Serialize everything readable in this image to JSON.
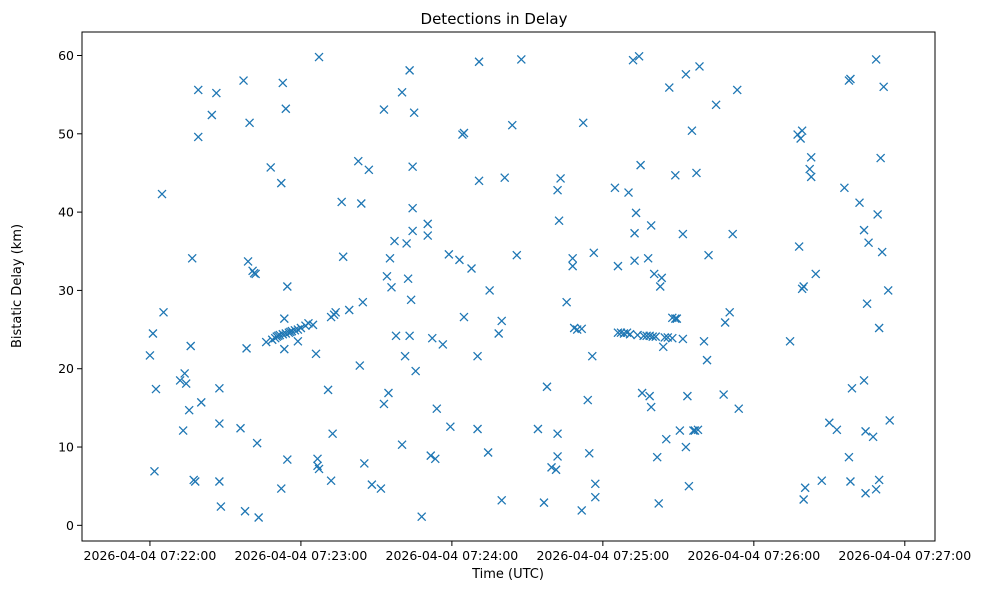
{
  "chart_data": {
    "type": "scatter",
    "title": "Detections in Delay",
    "xlabel": "Time (UTC)",
    "ylabel": "Bistatic Delay (km)",
    "x_unit": "minutes after 2026-04-04 07:22:00",
    "xlim": [
      -0.45,
      5.2
    ],
    "ylim": [
      -2,
      63
    ],
    "xticks": [
      0,
      1,
      2,
      3,
      4,
      5
    ],
    "xtick_labels": [
      "2026-04-04 07:22:00",
      "2026-04-04 07:23:00",
      "2026-04-04 07:24:00",
      "2026-04-04 07:25:00",
      "2026-04-04 07:26:00",
      "2026-04-04 07:27:00"
    ],
    "yticks": [
      0,
      10,
      20,
      30,
      40,
      50,
      60
    ],
    "ytick_labels": [
      "0",
      "10",
      "20",
      "30",
      "40",
      "50",
      "60"
    ],
    "marker": "x",
    "color": "#1f77b4",
    "series": [
      {
        "name": "detections",
        "points": [
          [
            0.03,
            6.9
          ],
          [
            0.02,
            24.5
          ],
          [
            0.04,
            17.4
          ],
          [
            0.0,
            21.7
          ],
          [
            0.08,
            42.3
          ],
          [
            0.09,
            27.2
          ],
          [
            0.2,
            18.5
          ],
          [
            0.22,
            12.1
          ],
          [
            0.23,
            19.4
          ],
          [
            0.24,
            18.1
          ],
          [
            0.26,
            14.7
          ],
          [
            0.27,
            22.9
          ],
          [
            0.28,
            34.1
          ],
          [
            0.29,
            5.8
          ],
          [
            0.3,
            5.6
          ],
          [
            0.32,
            55.6
          ],
          [
            0.32,
            49.6
          ],
          [
            0.34,
            15.7
          ],
          [
            0.41,
            52.4
          ],
          [
            0.44,
            55.2
          ],
          [
            0.46,
            17.5
          ],
          [
            0.46,
            13.0
          ],
          [
            0.46,
            5.6
          ],
          [
            0.47,
            2.4
          ],
          [
            0.6,
            12.4
          ],
          [
            0.62,
            56.8
          ],
          [
            0.63,
            1.8
          ],
          [
            0.64,
            22.6
          ],
          [
            0.65,
            33.7
          ],
          [
            0.66,
            51.4
          ],
          [
            0.68,
            32.5
          ],
          [
            0.69,
            32.2
          ],
          [
            0.7,
            32.1
          ],
          [
            0.71,
            10.5
          ],
          [
            0.72,
            1.0
          ],
          [
            0.77,
            23.4
          ],
          [
            0.8,
            45.7
          ],
          [
            0.81,
            23.7
          ],
          [
            0.83,
            23.9
          ],
          [
            0.84,
            24.1
          ],
          [
            0.85,
            24.2
          ],
          [
            0.86,
            24.3
          ],
          [
            0.87,
            43.7
          ],
          [
            0.87,
            4.7
          ],
          [
            0.88,
            56.5
          ],
          [
            0.88,
            24.4
          ],
          [
            0.89,
            22.5
          ],
          [
            0.89,
            26.4
          ],
          [
            0.9,
            53.2
          ],
          [
            0.9,
            24.5
          ],
          [
            0.91,
            30.5
          ],
          [
            0.91,
            8.4
          ],
          [
            0.92,
            24.6
          ],
          [
            0.93,
            24.7
          ],
          [
            0.94,
            24.8
          ],
          [
            0.96,
            24.9
          ],
          [
            0.98,
            25.0
          ],
          [
            0.98,
            23.5
          ],
          [
            1.0,
            25.2
          ],
          [
            1.03,
            25.5
          ],
          [
            1.05,
            25.8
          ],
          [
            1.08,
            25.6
          ],
          [
            1.1,
            21.9
          ],
          [
            1.11,
            8.5
          ],
          [
            1.11,
            7.6
          ],
          [
            1.12,
            7.2
          ],
          [
            1.12,
            59.8
          ],
          [
            1.18,
            17.3
          ],
          [
            1.2,
            26.6
          ],
          [
            1.2,
            5.7
          ],
          [
            1.21,
            11.7
          ],
          [
            1.22,
            26.9
          ],
          [
            1.23,
            27.2
          ],
          [
            1.27,
            41.3
          ],
          [
            1.28,
            34.3
          ],
          [
            1.32,
            27.5
          ],
          [
            1.38,
            46.5
          ],
          [
            1.39,
            20.4
          ],
          [
            1.4,
            41.1
          ],
          [
            1.41,
            28.5
          ],
          [
            1.42,
            7.9
          ],
          [
            1.45,
            45.4
          ],
          [
            1.47,
            5.2
          ],
          [
            1.53,
            4.7
          ],
          [
            1.55,
            53.1
          ],
          [
            1.55,
            15.5
          ],
          [
            1.57,
            31.8
          ],
          [
            1.58,
            16.9
          ],
          [
            1.59,
            34.1
          ],
          [
            1.6,
            30.4
          ],
          [
            1.62,
            36.3
          ],
          [
            1.63,
            24.2
          ],
          [
            1.67,
            55.3
          ],
          [
            1.67,
            10.3
          ],
          [
            1.69,
            21.6
          ],
          [
            1.7,
            36.0
          ],
          [
            1.71,
            31.5
          ],
          [
            1.72,
            58.1
          ],
          [
            1.72,
            24.2
          ],
          [
            1.73,
            28.8
          ],
          [
            1.74,
            45.8
          ],
          [
            1.74,
            37.6
          ],
          [
            1.74,
            40.5
          ],
          [
            1.75,
            52.7
          ],
          [
            1.76,
            19.7
          ],
          [
            1.8,
            1.1
          ],
          [
            1.84,
            37.0
          ],
          [
            1.84,
            38.5
          ],
          [
            1.86,
            8.9
          ],
          [
            1.87,
            23.9
          ],
          [
            1.89,
            8.5
          ],
          [
            1.9,
            14.9
          ],
          [
            1.94,
            23.1
          ],
          [
            1.98,
            34.6
          ],
          [
            1.99,
            12.6
          ],
          [
            2.05,
            33.9
          ],
          [
            2.07,
            49.9
          ],
          [
            2.08,
            50.1
          ],
          [
            2.08,
            26.6
          ],
          [
            2.13,
            32.8
          ],
          [
            2.17,
            21.6
          ],
          [
            2.17,
            12.3
          ],
          [
            2.18,
            44.0
          ],
          [
            2.18,
            59.2
          ],
          [
            2.24,
            9.3
          ],
          [
            2.25,
            30.0
          ],
          [
            2.31,
            24.5
          ],
          [
            2.33,
            3.2
          ],
          [
            2.33,
            26.1
          ],
          [
            2.35,
            44.4
          ],
          [
            2.4,
            51.1
          ],
          [
            2.43,
            34.5
          ],
          [
            2.46,
            59.5
          ],
          [
            2.57,
            12.3
          ],
          [
            2.61,
            2.9
          ],
          [
            2.63,
            17.7
          ],
          [
            2.66,
            7.4
          ],
          [
            2.69,
            7.1
          ],
          [
            2.7,
            11.7
          ],
          [
            2.7,
            42.8
          ],
          [
            2.7,
            8.8
          ],
          [
            2.72,
            44.3
          ],
          [
            2.71,
            38.9
          ],
          [
            2.76,
            28.5
          ],
          [
            2.8,
            34.1
          ],
          [
            2.8,
            33.1
          ],
          [
            2.81,
            25.2
          ],
          [
            2.83,
            25.0
          ],
          [
            2.86,
            25.1
          ],
          [
            2.86,
            1.9
          ],
          [
            2.87,
            51.4
          ],
          [
            2.9,
            16.0
          ],
          [
            2.91,
            9.2
          ],
          [
            2.93,
            21.6
          ],
          [
            2.94,
            34.8
          ],
          [
            2.95,
            5.3
          ],
          [
            2.95,
            3.6
          ],
          [
            3.08,
            43.1
          ],
          [
            3.1,
            33.1
          ],
          [
            3.1,
            24.6
          ],
          [
            3.12,
            24.6
          ],
          [
            3.14,
            24.5
          ],
          [
            3.16,
            24.6
          ],
          [
            3.17,
            42.5
          ],
          [
            3.18,
            24.4
          ],
          [
            3.2,
            59.4
          ],
          [
            3.21,
            33.8
          ],
          [
            3.21,
            37.3
          ],
          [
            3.22,
            39.9
          ],
          [
            3.23,
            24.3
          ],
          [
            3.24,
            59.9
          ],
          [
            3.25,
            46.0
          ],
          [
            3.26,
            16.9
          ],
          [
            3.27,
            24.2
          ],
          [
            3.29,
            24.2
          ],
          [
            3.3,
            34.1
          ],
          [
            3.31,
            24.2
          ],
          [
            3.31,
            16.5
          ],
          [
            3.32,
            15.1
          ],
          [
            3.32,
            38.3
          ],
          [
            3.33,
            24.1
          ],
          [
            3.34,
            32.1
          ],
          [
            3.35,
            24.1
          ],
          [
            3.36,
            8.7
          ],
          [
            3.37,
            2.8
          ],
          [
            3.38,
            30.5
          ],
          [
            3.39,
            31.6
          ],
          [
            3.4,
            22.8
          ],
          [
            3.41,
            24.0
          ],
          [
            3.42,
            11.0
          ],
          [
            3.43,
            24.0
          ],
          [
            3.44,
            55.9
          ],
          [
            3.46,
            23.9
          ],
          [
            3.46,
            26.5
          ],
          [
            3.48,
            44.7
          ],
          [
            3.48,
            26.4
          ],
          [
            3.49,
            26.4
          ],
          [
            3.51,
            12.1
          ],
          [
            3.53,
            37.2
          ],
          [
            3.53,
            23.8
          ],
          [
            3.55,
            10.0
          ],
          [
            3.55,
            57.6
          ],
          [
            3.56,
            16.5
          ],
          [
            3.57,
            5.0
          ],
          [
            3.59,
            50.4
          ],
          [
            3.6,
            12.1
          ],
          [
            3.61,
            12.1
          ],
          [
            3.62,
            45.0
          ],
          [
            3.63,
            12.2
          ],
          [
            3.64,
            58.6
          ],
          [
            3.67,
            23.5
          ],
          [
            3.69,
            21.1
          ],
          [
            3.7,
            34.5
          ],
          [
            3.75,
            53.7
          ],
          [
            3.8,
            16.7
          ],
          [
            3.81,
            25.9
          ],
          [
            3.84,
            27.2
          ],
          [
            3.86,
            37.2
          ],
          [
            3.89,
            55.6
          ],
          [
            3.9,
            14.9
          ],
          [
            4.24,
            23.5
          ],
          [
            4.29,
            49.9
          ],
          [
            4.3,
            35.6
          ],
          [
            4.31,
            49.4
          ],
          [
            4.32,
            50.4
          ],
          [
            4.32,
            30.2
          ],
          [
            4.33,
            30.5
          ],
          [
            4.33,
            3.3
          ],
          [
            4.34,
            4.8
          ],
          [
            4.37,
            45.5
          ],
          [
            4.38,
            47.0
          ],
          [
            4.38,
            44.5
          ],
          [
            4.41,
            32.1
          ],
          [
            4.45,
            5.7
          ],
          [
            4.5,
            13.1
          ],
          [
            4.55,
            12.2
          ],
          [
            4.6,
            43.1
          ],
          [
            4.63,
            8.7
          ],
          [
            4.63,
            56.8
          ],
          [
            4.64,
            57.0
          ],
          [
            4.64,
            5.6
          ],
          [
            4.65,
            17.5
          ],
          [
            4.7,
            41.2
          ],
          [
            4.73,
            37.7
          ],
          [
            4.73,
            18.5
          ],
          [
            4.74,
            12.0
          ],
          [
            4.74,
            4.1
          ],
          [
            4.75,
            28.3
          ],
          [
            4.76,
            36.1
          ],
          [
            4.79,
            11.3
          ],
          [
            4.81,
            59.5
          ],
          [
            4.81,
            4.6
          ],
          [
            4.82,
            39.7
          ],
          [
            4.83,
            5.8
          ],
          [
            4.83,
            25.2
          ],
          [
            4.84,
            46.9
          ],
          [
            4.85,
            34.9
          ],
          [
            4.86,
            56.0
          ],
          [
            4.89,
            30.0
          ],
          [
            4.9,
            13.4
          ]
        ]
      }
    ]
  }
}
